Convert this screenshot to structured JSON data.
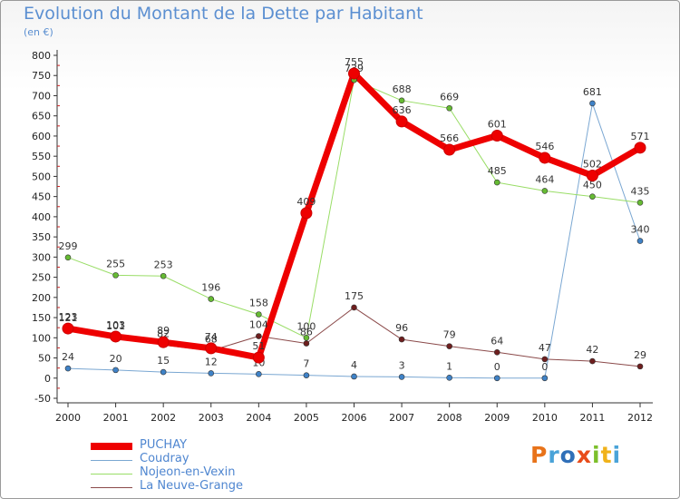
{
  "header": {
    "title": "Evolution du Montant de la Dette par Habitant",
    "unit": "(en €)"
  },
  "logo": {
    "text": "Proxiti",
    "letters": [
      "P",
      "r",
      "o",
      "x",
      "i",
      "t",
      "i"
    ],
    "colors": [
      "#e8731a",
      "#4aa3d8",
      "#2f6fb8",
      "#e84c1a",
      "#7cbf2a",
      "#f0b21a",
      "#4aa3d8"
    ]
  },
  "chart_data": {
    "type": "line",
    "categories": [
      "2000",
      "2001",
      "2002",
      "2003",
      "2004",
      "2005",
      "2006",
      "2007",
      "2008",
      "2009",
      "2010",
      "2011",
      "2012"
    ],
    "y_ticks": [
      -50,
      0,
      50,
      100,
      150,
      200,
      250,
      300,
      350,
      400,
      450,
      500,
      550,
      600,
      650,
      700,
      750,
      800
    ],
    "ylim": [
      -50,
      800
    ],
    "grid": false,
    "legend_position": "bottom-left",
    "series": [
      {
        "name": "PUCHAY",
        "color": "#ee0000",
        "marker": "#ee0000",
        "width": 7,
        "values": [
          123,
          103,
          89,
          74,
          51,
          409,
          755,
          636,
          566,
          601,
          546,
          502,
          571
        ],
        "labels": [
          "123",
          "103",
          "89",
          "74",
          "51",
          "409",
          "755",
          "636",
          "566",
          "601",
          "546",
          "502",
          "571"
        ]
      },
      {
        "name": "Coudray",
        "color": "#7aa7d2",
        "marker": "#3f82c7",
        "width": 1,
        "values": [
          24,
          20,
          15,
          12,
          10,
          7,
          4,
          3,
          1,
          0,
          0,
          681,
          340
        ],
        "labels": [
          "24",
          "20",
          "15",
          "12",
          "10",
          "7",
          "4",
          "3",
          "1",
          "0",
          "0",
          "681",
          "340"
        ]
      },
      {
        "name": "Nojeon-en-Vexin",
        "color": "#99dd66",
        "marker": "#66bb33",
        "width": 1,
        "values": [
          299,
          255,
          253,
          196,
          158,
          100,
          739,
          688,
          669,
          485,
          464,
          450,
          435
        ],
        "labels": [
          "299",
          "255",
          "253",
          "196",
          "158",
          "100",
          "739",
          "688",
          "669",
          "485",
          "464",
          "450",
          "435"
        ]
      },
      {
        "name": "La Neuve-Grange",
        "color": "#8b4a4a",
        "marker": "#6e1e1e",
        "width": 1,
        "values": [
          121,
          101,
          82,
          68,
          104,
          86,
          175,
          96,
          79,
          64,
          47,
          42,
          29
        ],
        "labels": [
          "121",
          "101",
          "82",
          "68",
          "104",
          "86",
          "175",
          "96",
          "79",
          "64",
          "47",
          "42",
          "29"
        ]
      }
    ]
  }
}
